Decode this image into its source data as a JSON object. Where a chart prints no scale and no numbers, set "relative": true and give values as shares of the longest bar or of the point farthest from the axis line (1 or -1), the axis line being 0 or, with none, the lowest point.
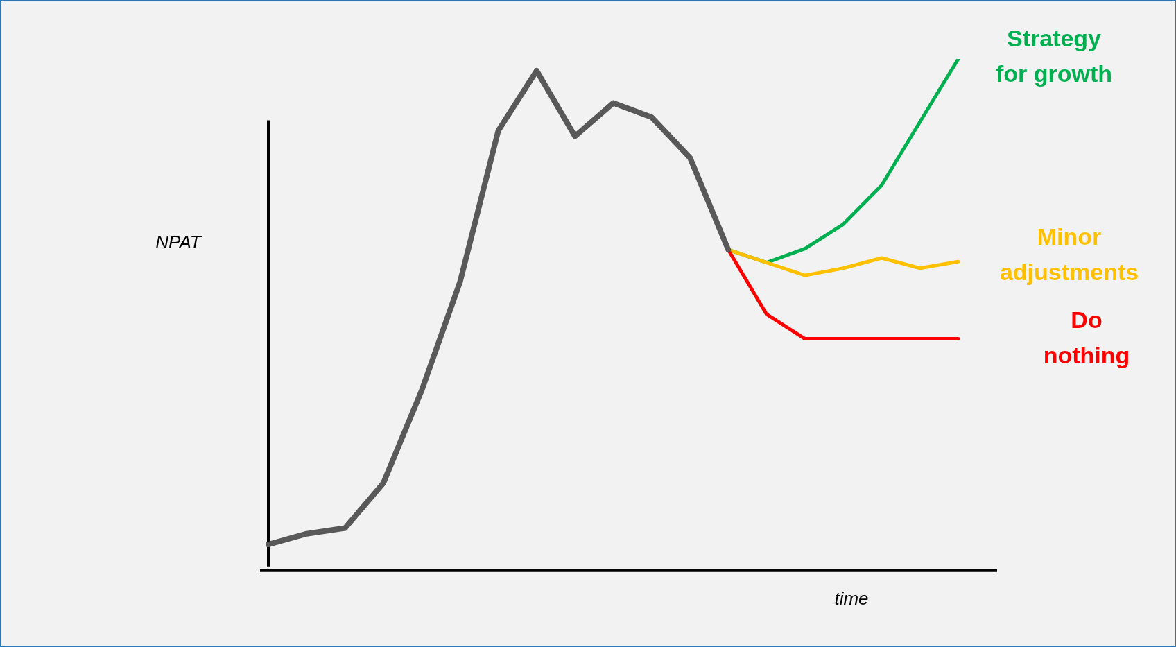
{
  "chart_data": {
    "type": "line",
    "relative": true,
    "ylabel": "NPAT",
    "xlabel": "time",
    "legend": false,
    "grid": false,
    "marker": "none",
    "line_style": "solid",
    "categories": [
      null,
      null,
      null,
      null,
      null,
      null,
      null,
      null,
      null,
      null,
      null,
      null,
      null,
      null,
      null,
      null,
      null,
      null,
      null
    ],
    "series": [
      {
        "color": "#595959",
        "values": [
          0.051,
          0.072,
          0.083,
          0.171,
          0.352,
          0.564,
          0.86,
          0.977,
          0.849,
          0.914,
          0.886,
          0.807,
          0.627,
          null,
          null,
          null,
          null,
          null,
          null
        ]
      },
      {
        "name": "Do nothing",
        "color": "#ff0000",
        "values": [
          null,
          null,
          null,
          null,
          null,
          null,
          null,
          null,
          null,
          null,
          null,
          null,
          0.627,
          0.501,
          0.453,
          0.453,
          0.453,
          0.453,
          0.453
        ]
      },
      {
        "name": "Minor adjustments",
        "color": "#ffc000",
        "values": [
          null,
          null,
          null,
          null,
          null,
          null,
          null,
          null,
          null,
          null,
          null,
          null,
          0.627,
          0.602,
          0.577,
          0.591,
          0.611,
          0.591,
          0.604
        ]
      },
      {
        "name": "Strategy for growth",
        "color": "#00b050",
        "values": [
          null,
          null,
          null,
          null,
          null,
          null,
          null,
          null,
          null,
          null,
          null,
          null,
          0.627,
          0.602,
          0.629,
          0.677,
          0.753,
          0.877,
          1
        ]
      }
    ]
  }
}
